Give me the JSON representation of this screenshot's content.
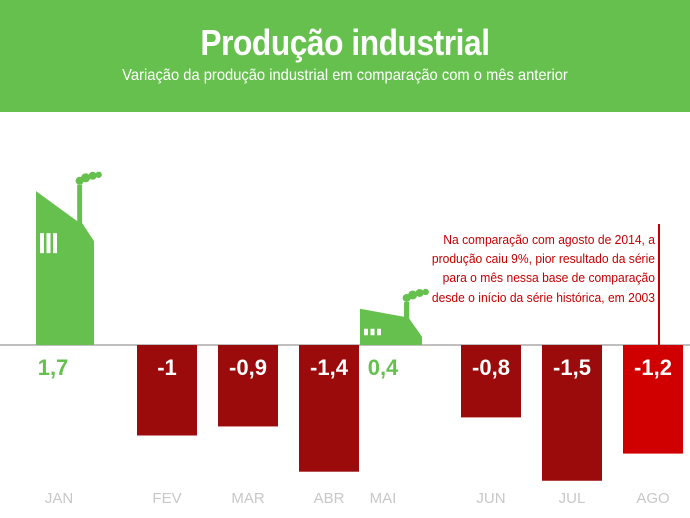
{
  "header": {
    "title": "Produção industrial",
    "subtitle": "Variação da produção industrial em comparação com o mês anterior"
  },
  "colors": {
    "header_bg": "#66c04e",
    "positive": "#66c04e",
    "negative": "#9b0b0b",
    "highlight": "#d10000",
    "axis": "#aaaaaa",
    "month_label": "#c8c8c8"
  },
  "icons": [
    "factory-icon"
  ],
  "annotation": {
    "text": "Na comparação com agosto de 2014, a produção caiu 9%, pior resultado da série para o mês nessa base de comparação desde o início da série histórica, em 2003"
  },
  "chart_data": {
    "type": "bar",
    "categories": [
      "JAN",
      "FEV",
      "MAR",
      "ABR",
      "MAI",
      "JUN",
      "JUL",
      "AGO"
    ],
    "values": [
      1.7,
      -1,
      -0.9,
      -1.4,
      0.4,
      -0.8,
      -1.5,
      -1.2
    ],
    "value_labels": [
      "1,7",
      "-1",
      "-0,9",
      "-1,4",
      "0,4",
      "-0,8",
      "-1,5",
      "-1,2"
    ],
    "highlighted_category": "AGO",
    "positive_bars_drawn_as": "factory-icon",
    "title": "Produção industrial",
    "subtitle": "Variação da produção industrial em comparação com o mês anterior",
    "xlabel": "",
    "ylabel": "",
    "grid": false,
    "legend": "none"
  }
}
